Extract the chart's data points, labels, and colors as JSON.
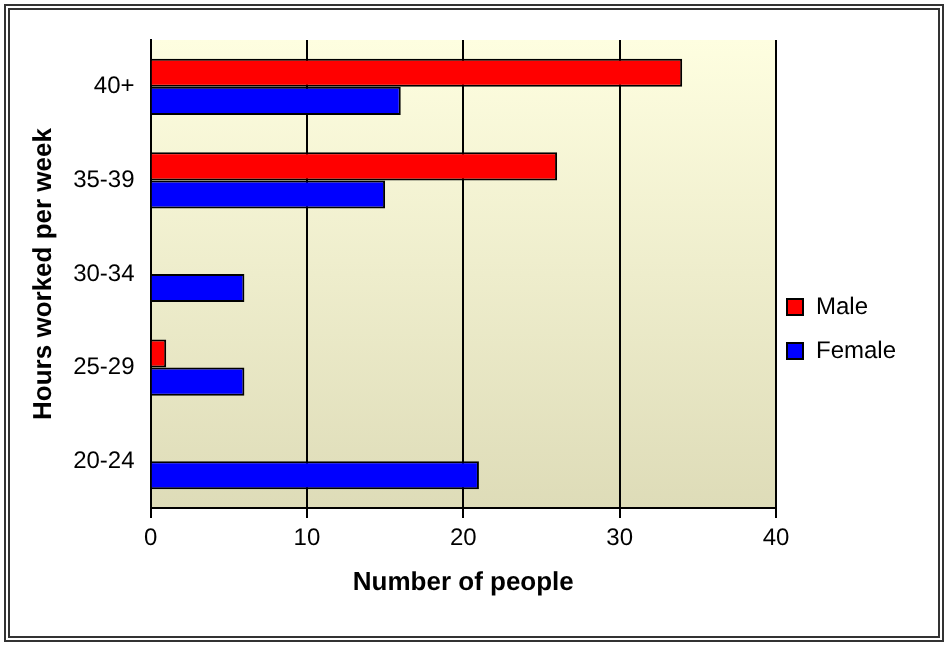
{
  "chart_data": {
    "type": "bar",
    "orientation": "horizontal",
    "xlabel": "Number of people",
    "ylabel": "Hours worked per week",
    "categories": [
      "40+",
      "35-39",
      "30-34",
      "25-29",
      "20-24"
    ],
    "series": [
      {
        "name": "Male",
        "color": "#ff0000",
        "values": [
          34,
          26,
          0,
          1,
          0
        ]
      },
      {
        "name": "Female",
        "color": "#0000ff",
        "values": [
          16,
          15,
          6,
          6,
          21
        ]
      }
    ],
    "xlim": [
      0,
      40
    ],
    "xticks": [
      0,
      10,
      20,
      30,
      40
    ],
    "grid": "x",
    "legend": "right"
  }
}
